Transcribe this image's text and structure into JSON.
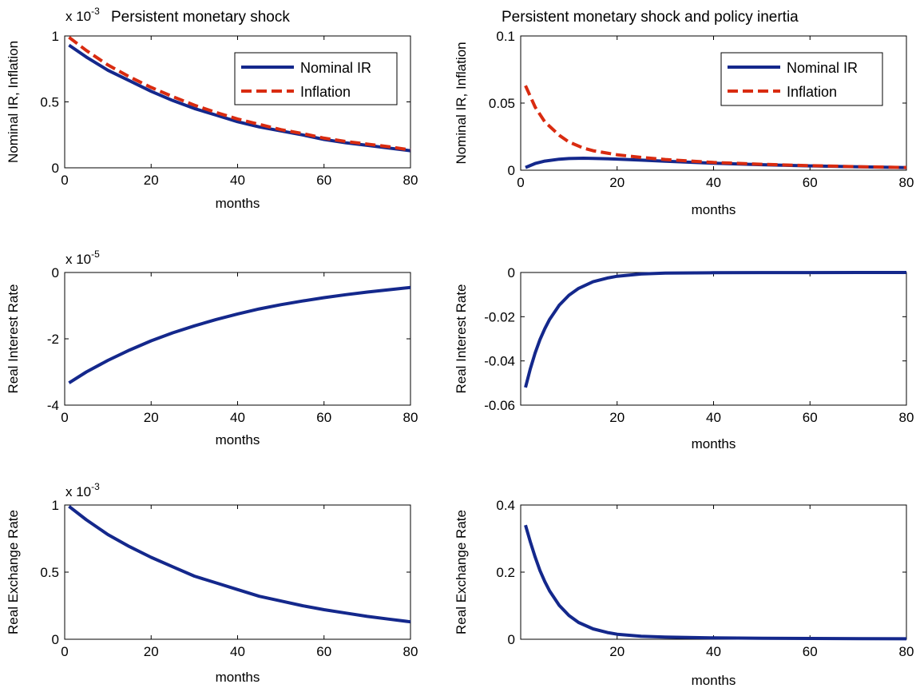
{
  "colors": {
    "nominal": "#14288c",
    "inflation": "#d92b10",
    "axis": "#000000",
    "background": "#ffffff"
  },
  "chart_data": [
    {
      "id": "p1",
      "type": "line",
      "title": "Persistent monetary shock",
      "xlabel": "months",
      "ylabel": "Nominal IR, Inflation",
      "exponent": "x 10",
      "exponent_power": "-3",
      "xlim": [
        0,
        80
      ],
      "ylim": [
        0,
        1
      ],
      "xticks": [
        0,
        20,
        40,
        60,
        80
      ],
      "xtick_labels": [
        "0",
        "20",
        "40",
        "60",
        "80"
      ],
      "yticks": [
        0,
        0.5,
        1
      ],
      "ytick_labels": [
        "0",
        "0.5",
        "1"
      ],
      "legend": {
        "position": "top-right"
      },
      "series": [
        {
          "name": "Nominal IR",
          "style": "solid",
          "color": "#14288c",
          "x": [
            1,
            5,
            10,
            15,
            20,
            25,
            30,
            35,
            40,
            45,
            50,
            55,
            60,
            65,
            70,
            75,
            80
          ],
          "y": [
            0.93,
            0.84,
            0.74,
            0.66,
            0.58,
            0.51,
            0.45,
            0.4,
            0.35,
            0.31,
            0.28,
            0.25,
            0.215,
            0.19,
            0.17,
            0.15,
            0.13
          ]
        },
        {
          "name": "Inflation",
          "style": "dashed",
          "color": "#d92b10",
          "x": [
            1,
            5,
            10,
            15,
            20,
            25,
            30,
            35,
            40,
            45,
            50,
            55,
            60,
            65,
            70,
            75,
            80
          ],
          "y": [
            0.99,
            0.89,
            0.78,
            0.69,
            0.61,
            0.54,
            0.475,
            0.42,
            0.37,
            0.33,
            0.29,
            0.26,
            0.225,
            0.2,
            0.18,
            0.16,
            0.135
          ]
        }
      ]
    },
    {
      "id": "p2",
      "type": "line",
      "title": "Persistent monetary shock and policy inertia",
      "xlabel": "months",
      "ylabel": "Nominal IR, Inflation",
      "xlim": [
        0,
        80
      ],
      "ylim": [
        0,
        0.1
      ],
      "xticks": [
        0,
        20,
        40,
        60,
        80
      ],
      "xtick_labels": [
        "0",
        "20",
        "40",
        "60",
        "80"
      ],
      "yticks": [
        0,
        0.05,
        0.1
      ],
      "ytick_labels": [
        "0",
        "0.05",
        "0.1"
      ],
      "legend": {
        "position": "top-right"
      },
      "series": [
        {
          "name": "Nominal IR",
          "style": "solid",
          "color": "#14288c",
          "x": [
            1,
            3,
            5,
            8,
            10,
            13,
            15,
            20,
            25,
            30,
            40,
            50,
            60,
            70,
            80
          ],
          "y": [
            0.002,
            0.005,
            0.0068,
            0.0082,
            0.0087,
            0.0089,
            0.0088,
            0.0083,
            0.0075,
            0.0067,
            0.0052,
            0.0041,
            0.0032,
            0.0025,
            0.0019
          ]
        },
        {
          "name": "Inflation",
          "style": "dashed",
          "color": "#d92b10",
          "x": [
            1,
            3,
            5,
            8,
            10,
            13,
            15,
            20,
            25,
            30,
            40,
            50,
            60,
            70,
            80
          ],
          "y": [
            0.063,
            0.047,
            0.036,
            0.026,
            0.021,
            0.0165,
            0.0145,
            0.0115,
            0.0095,
            0.008,
            0.0058,
            0.0044,
            0.0034,
            0.0026,
            0.002
          ]
        }
      ]
    },
    {
      "id": "p3",
      "type": "line",
      "title": "",
      "xlabel": "months",
      "ylabel": "Real Interest Rate",
      "exponent": "x 10",
      "exponent_power": "-5",
      "xlim": [
        0,
        80
      ],
      "ylim": [
        -4,
        0
      ],
      "xticks": [
        0,
        20,
        40,
        60,
        80
      ],
      "xtick_labels": [
        "0",
        "20",
        "40",
        "60",
        "80"
      ],
      "yticks": [
        -4,
        -2,
        0
      ],
      "ytick_labels": [
        "-4",
        "-2",
        "0"
      ],
      "series": [
        {
          "name": "",
          "style": "solid",
          "color": "#14288c",
          "x": [
            1,
            5,
            10,
            15,
            20,
            25,
            30,
            35,
            40,
            45,
            50,
            55,
            60,
            65,
            70,
            75,
            80
          ],
          "y": [
            -3.33,
            -3.0,
            -2.65,
            -2.34,
            -2.06,
            -1.82,
            -1.61,
            -1.42,
            -1.25,
            -1.1,
            -0.97,
            -0.86,
            -0.76,
            -0.67,
            -0.59,
            -0.52,
            -0.45
          ]
        }
      ]
    },
    {
      "id": "p4",
      "type": "line",
      "title": "",
      "xlabel": "months",
      "ylabel": "Real Interest Rate",
      "xlim": [
        0,
        80
      ],
      "ylim": [
        -0.06,
        0
      ],
      "xticks": [
        20,
        40,
        60,
        80
      ],
      "xtick_labels": [
        "20",
        "40",
        "60",
        "80"
      ],
      "yticks": [
        -0.06,
        -0.04,
        -0.02,
        0
      ],
      "ytick_labels": [
        "-0.06",
        "-0.04",
        "-0.02",
        "0"
      ],
      "series": [
        {
          "name": "",
          "style": "solid",
          "color": "#14288c",
          "x": [
            1,
            2,
            3,
            4,
            5,
            6,
            8,
            10,
            12,
            15,
            18,
            20,
            25,
            30,
            40,
            50,
            60,
            70,
            80
          ],
          "y": [
            -0.052,
            -0.0435,
            -0.0364,
            -0.0304,
            -0.0254,
            -0.0212,
            -0.0148,
            -0.0103,
            -0.0072,
            -0.0042,
            -0.0025,
            -0.0017,
            -0.0007,
            -0.0003,
            -0.0001,
            -4e-05,
            -2e-05,
            -1e-05,
            -1e-05
          ]
        }
      ]
    },
    {
      "id": "p5",
      "type": "line",
      "title": "",
      "xlabel": "months",
      "ylabel": "Real Exchange Rate",
      "exponent": "x 10",
      "exponent_power": "-3",
      "xlim": [
        0,
        80
      ],
      "ylim": [
        0,
        1
      ],
      "xticks": [
        0,
        20,
        40,
        60,
        80
      ],
      "xtick_labels": [
        "0",
        "20",
        "40",
        "60",
        "80"
      ],
      "yticks": [
        0,
        0.5,
        1
      ],
      "ytick_labels": [
        "0",
        "0.5",
        "1"
      ],
      "series": [
        {
          "name": "",
          "style": "solid",
          "color": "#14288c",
          "x": [
            1,
            5,
            10,
            15,
            20,
            25,
            30,
            35,
            40,
            45,
            50,
            55,
            60,
            65,
            70,
            75,
            80
          ],
          "y": [
            0.99,
            0.89,
            0.78,
            0.69,
            0.61,
            0.54,
            0.47,
            0.42,
            0.37,
            0.32,
            0.285,
            0.25,
            0.22,
            0.195,
            0.17,
            0.15,
            0.13
          ]
        }
      ]
    },
    {
      "id": "p6",
      "type": "line",
      "title": "",
      "xlabel": "months",
      "ylabel": "Real Exchange Rate",
      "xlim": [
        0,
        80
      ],
      "ylim": [
        0,
        0.4
      ],
      "xticks": [
        20,
        40,
        60,
        80
      ],
      "xtick_labels": [
        "20",
        "40",
        "60",
        "80"
      ],
      "yticks": [
        0,
        0.2,
        0.4
      ],
      "ytick_labels": [
        "0",
        "0.2",
        "0.4"
      ],
      "series": [
        {
          "name": "",
          "style": "solid",
          "color": "#14288c",
          "x": [
            1,
            2,
            3,
            4,
            5,
            6,
            8,
            10,
            12,
            15,
            18,
            20,
            25,
            30,
            40,
            50,
            60,
            70,
            80
          ],
          "y": [
            0.34,
            0.29,
            0.245,
            0.205,
            0.172,
            0.144,
            0.101,
            0.071,
            0.05,
            0.031,
            0.02,
            0.015,
            0.009,
            0.0065,
            0.004,
            0.003,
            0.0025,
            0.002,
            0.0015
          ]
        }
      ]
    }
  ]
}
